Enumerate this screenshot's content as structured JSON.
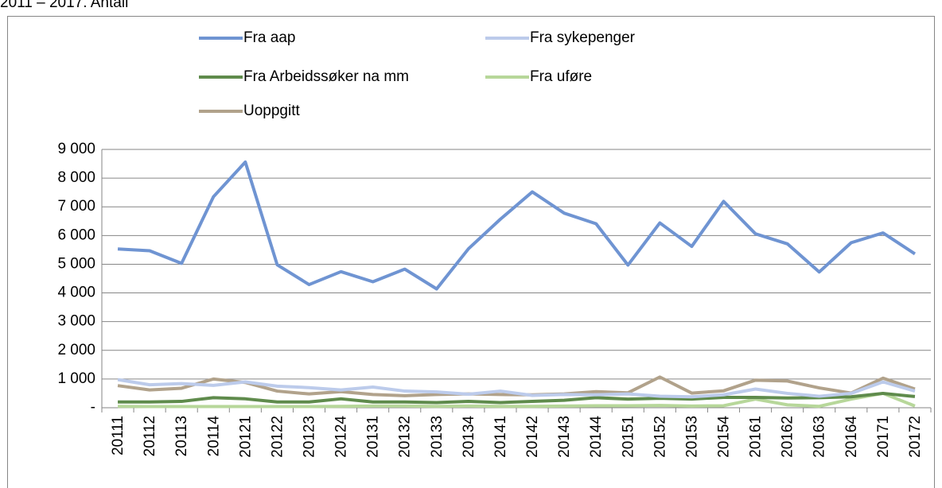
{
  "chart_data": {
    "type": "line",
    "title": "2011 – 2017. Antall",
    "categories": [
      "20111",
      "20112",
      "20113",
      "20114",
      "20121",
      "20122",
      "20123",
      "20124",
      "20131",
      "20132",
      "20133",
      "20134",
      "20141",
      "20142",
      "20143",
      "20144",
      "20151",
      "20152",
      "20153",
      "20154",
      "20161",
      "20162",
      "20163",
      "20164",
      "20171",
      "20172"
    ],
    "series": [
      {
        "name": "Fra aap",
        "color": "#6f94d2",
        "values": [
          5530,
          5470,
          5030,
          7350,
          8560,
          4980,
          4290,
          4740,
          4390,
          4830,
          4140,
          5540,
          6570,
          7520,
          6780,
          6410,
          4970,
          6440,
          5620,
          7190,
          6060,
          5710,
          4730,
          5750,
          6090,
          5360
        ]
      },
      {
        "name": "Fra sykepenger",
        "color": "#bccbeb",
        "values": [
          980,
          800,
          840,
          780,
          900,
          750,
          700,
          620,
          720,
          580,
          550,
          470,
          580,
          430,
          460,
          450,
          480,
          400,
          380,
          450,
          650,
          500,
          400,
          500,
          900,
          580
        ]
      },
      {
        "name": "Fra Arbeidssøker na mm",
        "color": "#5f8b4c",
        "values": [
          200,
          200,
          220,
          350,
          310,
          200,
          200,
          310,
          200,
          200,
          180,
          220,
          180,
          220,
          260,
          350,
          300,
          330,
          300,
          360,
          360,
          340,
          350,
          380,
          500,
          390
        ]
      },
      {
        "name": "Fra uføre",
        "color": "#b7d79a",
        "values": [
          50,
          40,
          40,
          40,
          40,
          40,
          40,
          50,
          60,
          60,
          50,
          60,
          50,
          50,
          60,
          70,
          70,
          80,
          60,
          70,
          300,
          100,
          50,
          300,
          500,
          60
        ]
      },
      {
        "name": "Uoppgitt",
        "color": "#b1a28b",
        "values": [
          770,
          620,
          680,
          1000,
          880,
          580,
          480,
          560,
          460,
          420,
          460,
          480,
          460,
          450,
          480,
          560,
          520,
          1070,
          510,
          590,
          960,
          930,
          690,
          510,
          1030,
          650
        ]
      }
    ],
    "ylim": [
      0,
      9000
    ],
    "yticks": [
      {
        "value": 0,
        "label": "-"
      },
      {
        "value": 1000,
        "label": "1 000"
      },
      {
        "value": 2000,
        "label": "2 000"
      },
      {
        "value": 3000,
        "label": "3 000"
      },
      {
        "value": 4000,
        "label": "4 000"
      },
      {
        "value": 5000,
        "label": "5 000"
      },
      {
        "value": 6000,
        "label": "6 000"
      },
      {
        "value": 7000,
        "label": "7 000"
      },
      {
        "value": 8000,
        "label": "8 000"
      },
      {
        "value": 9000,
        "label": "9 000"
      }
    ],
    "grid": true
  }
}
